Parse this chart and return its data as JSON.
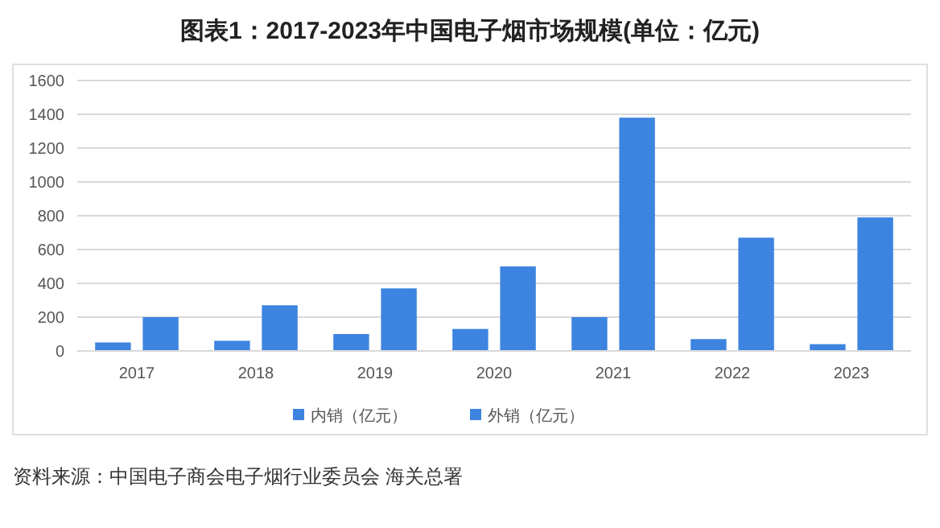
{
  "chart_data": {
    "type": "bar",
    "title": "图表1：2017-2023年中国电子烟市场规模(单位：亿元)",
    "categories": [
      "2017",
      "2018",
      "2019",
      "2020",
      "2021",
      "2022",
      "2023"
    ],
    "series": [
      {
        "name": "内销（亿元）",
        "color": "#3d84e0",
        "values": [
          50,
          60,
          100,
          130,
          200,
          70,
          40
        ]
      },
      {
        "name": "外销（亿元）",
        "color": "#3d84e0",
        "values": [
          200,
          270,
          370,
          500,
          1380,
          670,
          790
        ]
      }
    ],
    "ylim": [
      0,
      1600
    ],
    "yticks": [
      0,
      200,
      400,
      600,
      800,
      1000,
      1200,
      1400,
      1600
    ],
    "grid": "y",
    "legend": "bottom",
    "annotations": [
      "资料来源：中国电子商会电子烟行业委员会 海关总署"
    ]
  }
}
